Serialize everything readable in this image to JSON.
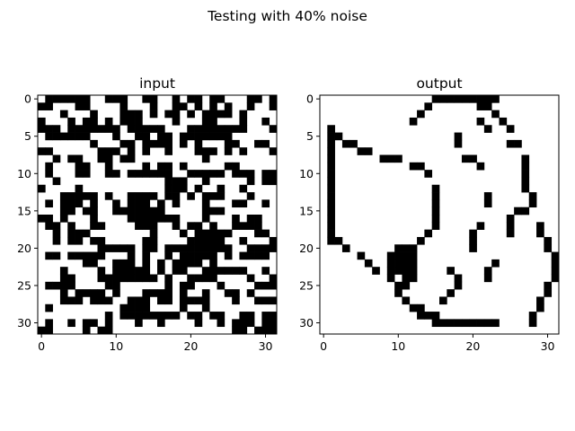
{
  "figure": {
    "suptitle": "Testing with 40% noise"
  },
  "chart_data": [
    {
      "type": "heatmap",
      "title": "input",
      "colormap": [
        "#ffffff",
        "#000000"
      ],
      "xticks": [
        0,
        10,
        20,
        30
      ],
      "yticks": [
        0,
        5,
        10,
        15,
        20,
        25,
        30
      ],
      "xlim": [
        -0.5,
        31.5
      ],
      "ylim": [
        31.5,
        -0.5
      ],
      "grid": "32x32 binary, 1 = black",
      "rows": [
        "01111110011100110010110110001101",
        "11000110000100010011010101001001",
        "00010001000111010110101111010000",
        "10001011010111000010001100010010",
        "11101111111011111000111111110001",
        "01111110001001101101111111000000",
        "00000001000110111101010001100110",
        "11000000111010100100011101010001",
        "00101100110110000000001000000000",
        "01000110010000101101000001100000",
        "01000110011011111100111110111011",
        "00100000000000000111001000001011",
        "10000100000000000111010010010000",
        "00011111010011110110101110001000",
        "01011101001011101010001000110010",
        "00011011001111111000001110000000",
        "11010001000011111110001000101100",
        "01101001100001110010110100111100",
        "00101110000000010001011111000110",
        "00101101100000110000111110010001",
        "00000000111110110111111111001111",
        "01101111100010100101111101011110",
        "00000011001110101011110100000000",
        "00010000101111101011001111110010",
        "00011000111111110100111100001001",
        "01111000011000000101100010000111",
        "00010111101000111101001001101000",
        "00011101110011101101111000100111",
        "01000000000111100001001000000000",
        "00000000010111111110110110011011",
        "01001011010001001000010010111011",
        "11000010110000000000000000110111"
      ]
    },
    {
      "type": "heatmap",
      "title": "output",
      "colormap": [
        "#ffffff",
        "#000000"
      ],
      "xticks": [
        0,
        10,
        20,
        30
      ],
      "yticks": [
        0,
        5,
        10,
        15,
        20,
        25,
        30
      ],
      "xlim": [
        -0.5,
        31.5
      ],
      "ylim": [
        31.5,
        -0.5
      ],
      "grid": "32x32 binary, 1 = black",
      "rows": [
        "00000000000000011111111100000000",
        "00000000000000100000011000000000",
        "00000000000001000000000100000000",
        "00000000000010000000010010000000",
        "01000000000000000000001001000000",
        "01100000000000000010000000000000",
        "01011000000000000010000001100000",
        "01000110000000000000000000000000",
        "01000000111000000001100000010000",
        "01000000000011000000010000010000",
        "01000000000000100000000000010000",
        "01000000000000000000000000010000",
        "01000000000000010000000000010000",
        "01000000000000010000001000001000",
        "01000000000000010000001000001000",
        "01000000000000010000000000110000",
        "01000000000000010000000001000000",
        "01000000000000010000010001000100",
        "01000000000000100000100001000100",
        "01100000000001000000100000000010",
        "00010000001110000000100000000010",
        "00000100011110000000000000000001",
        "00000010011110000000000100000001",
        "00000001011110000100001000000001",
        "00000000010110000010001000000001",
        "00000000001100000010000000000010",
        "00000000001000000100000000000010",
        "00000000000100001000000000000100",
        "00000000000011000000000000000100",
        "00000000000001110000000000001000",
        "00000000000000011111111100001000",
        "00000000000000000000000000000000"
      ]
    }
  ]
}
